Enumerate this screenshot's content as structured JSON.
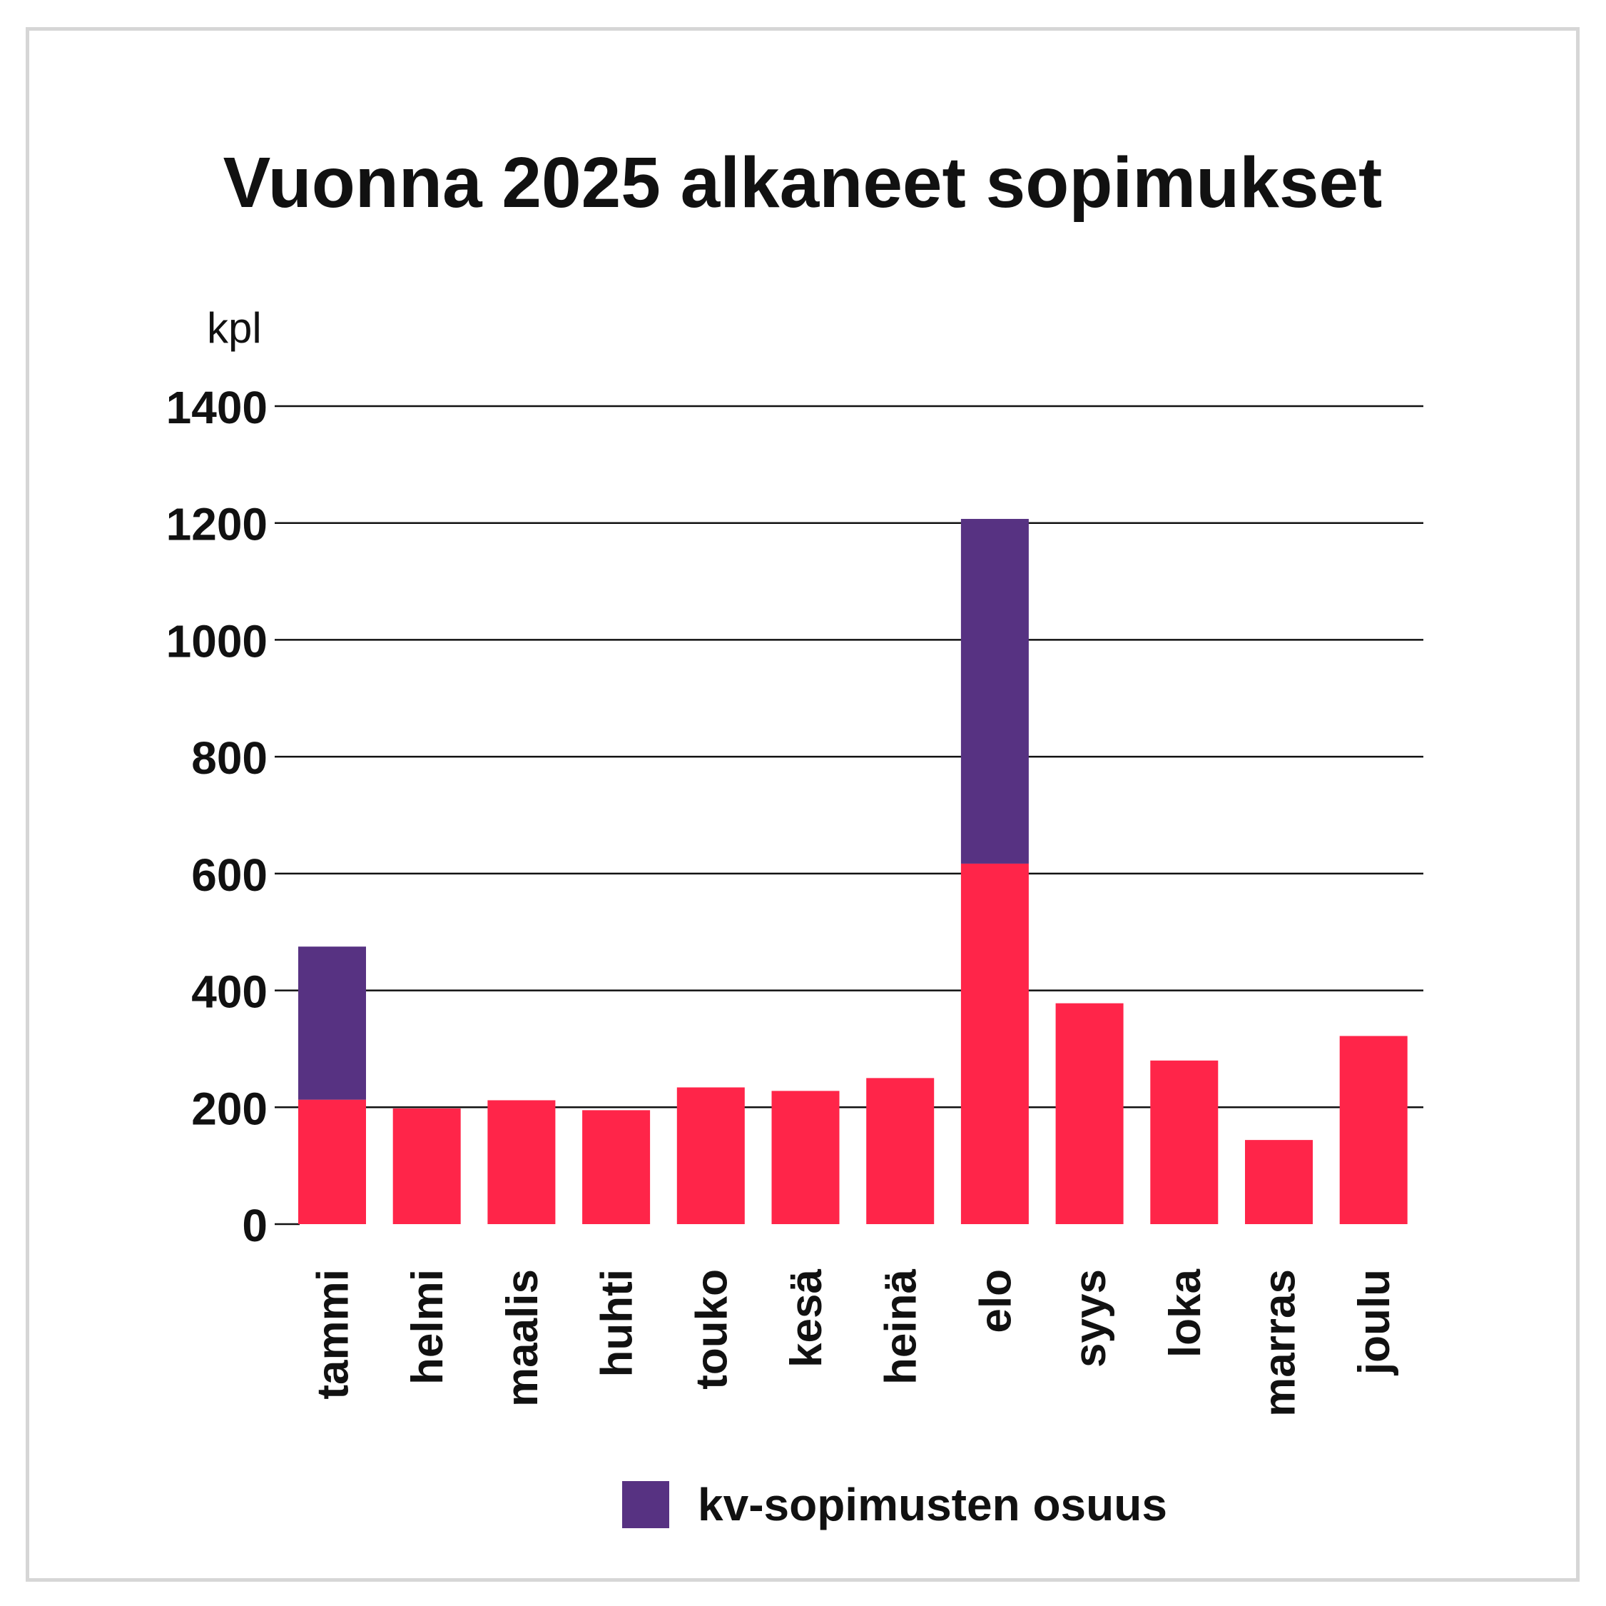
{
  "chart_data": {
    "type": "bar",
    "stacked": true,
    "title": "Vuonna 2025 alkaneet sopimukset",
    "ylabel": "kpl",
    "xlabel": "",
    "ylim": [
      0,
      1400
    ],
    "yticks": [
      0,
      200,
      400,
      600,
      800,
      1000,
      1200,
      1400
    ],
    "grid": true,
    "categories": [
      "tammi",
      "helmi",
      "maalis",
      "huhti",
      "touko",
      "kesä",
      "heinä",
      "elo",
      "syys",
      "loka",
      "marras",
      "joulu"
    ],
    "series": [
      {
        "name": "",
        "color": "#ff2549",
        "values": [
          213,
          198,
          212,
          195,
          234,
          228,
          250,
          617,
          378,
          280,
          144,
          322
        ]
      },
      {
        "name": "kv-sopimusten osuus",
        "color": "#573282",
        "values": [
          262,
          0,
          0,
          0,
          0,
          0,
          0,
          590,
          0,
          0,
          0,
          0
        ]
      }
    ],
    "legend": {
      "position": "bottom-center"
    }
  }
}
